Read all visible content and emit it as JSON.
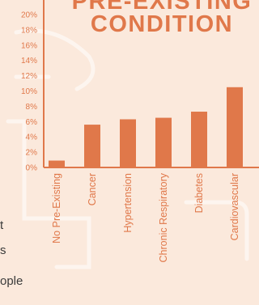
{
  "title": {
    "line1": "PRE-EXISTING",
    "line2": "CONDITION"
  },
  "side_text": [
    "t",
    "s",
    "ople"
  ],
  "colors": {
    "accent": "#e0784a",
    "background": "#fbe9dc",
    "text": "#3b3b3b"
  },
  "chart_data": {
    "type": "bar",
    "title": "PRE-EXISTING CONDITION",
    "categories": [
      "No Pre-Existing",
      "Cancer",
      "Hypertension",
      "Chronic Respiratory",
      "Diabetes",
      "Cardiovascular"
    ],
    "values": [
      0.9,
      5.6,
      6.3,
      6.5,
      7.3,
      10.5
    ],
    "unit": "%",
    "ylim": [
      0,
      20
    ],
    "yticks": [
      "0%",
      "2%",
      "4%",
      "6%",
      "8%",
      "10%",
      "12%",
      "14%",
      "16%",
      "18%",
      "20%"
    ],
    "grid": false,
    "xlabel": "",
    "ylabel": ""
  }
}
